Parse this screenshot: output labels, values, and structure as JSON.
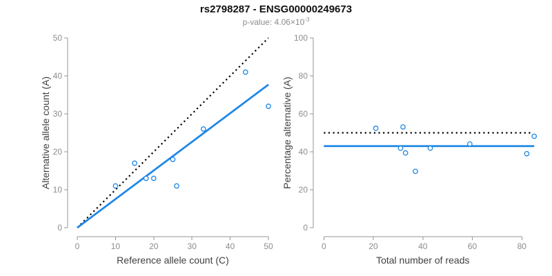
{
  "colors": {
    "accent_blue": "#1E88E5",
    "line_black": "#000000",
    "axis_gray": "#969696",
    "tick_label_gray": "#8c8c8c",
    "axis_title_dark": "#404040",
    "title_black": "#111111"
  },
  "chart_data": {
    "title": "rs2798287 - ENSG00000249673",
    "subtitle_prefix": "p-value: 4.06×10",
    "subtitle_exponent": "-3",
    "plots": [
      {
        "type": "scatter",
        "name": "allele-counts-plot",
        "xlabel": "Reference allele count (C)",
        "ylabel": "Alternative allele count (A)",
        "xlim": [
          0,
          50
        ],
        "ylim": [
          0,
          50
        ],
        "xticks": [
          0,
          10,
          20,
          30,
          40,
          50
        ],
        "yticks": [
          0,
          10,
          20,
          30,
          40,
          50
        ],
        "grid": false,
        "marker": "open-circle",
        "point_color": "#1E88E5",
        "points": [
          [
            10,
            11
          ],
          [
            15,
            17
          ],
          [
            18,
            13
          ],
          [
            20,
            13
          ],
          [
            25,
            18
          ],
          [
            26,
            11
          ],
          [
            33,
            26
          ],
          [
            44,
            41
          ],
          [
            50,
            32
          ]
        ],
        "lines": [
          {
            "name": "identity-line",
            "style": "dotted",
            "color": "#000000",
            "from": [
              0,
              0
            ],
            "to": [
              50,
              50
            ]
          },
          {
            "name": "fit-line",
            "style": "solid",
            "color": "#1E88E5",
            "from": [
              0,
              0
            ],
            "to": [
              50,
              37.7
            ]
          }
        ]
      },
      {
        "type": "scatter",
        "name": "percentage-alternative-plot",
        "xlabel": "Total number of reads",
        "ylabel": "Percentage alternative (A)",
        "xlim": [
          0,
          85
        ],
        "ylim": [
          0,
          100
        ],
        "xticks": [
          0,
          20,
          40,
          60,
          80
        ],
        "yticks": [
          0,
          20,
          40,
          60,
          80,
          100
        ],
        "grid": false,
        "marker": "open-circle",
        "point_color": "#1E88E5",
        "points": [
          [
            21,
            52.4
          ],
          [
            31,
            41.9
          ],
          [
            32,
            53.1
          ],
          [
            33,
            39.4
          ],
          [
            37,
            29.7
          ],
          [
            43,
            41.9
          ],
          [
            59,
            44.1
          ],
          [
            82,
            39.0
          ],
          [
            85,
            48.2
          ]
        ],
        "lines": [
          {
            "name": "expected-50pct-line",
            "style": "dotted",
            "color": "#000000",
            "from": [
              0,
              50
            ],
            "to": [
              83.5,
              50
            ]
          },
          {
            "name": "mean-percentage-line",
            "style": "solid",
            "color": "#1E88E5",
            "from": [
              0,
              43
            ],
            "to": [
              85,
              43
            ]
          }
        ]
      }
    ]
  }
}
